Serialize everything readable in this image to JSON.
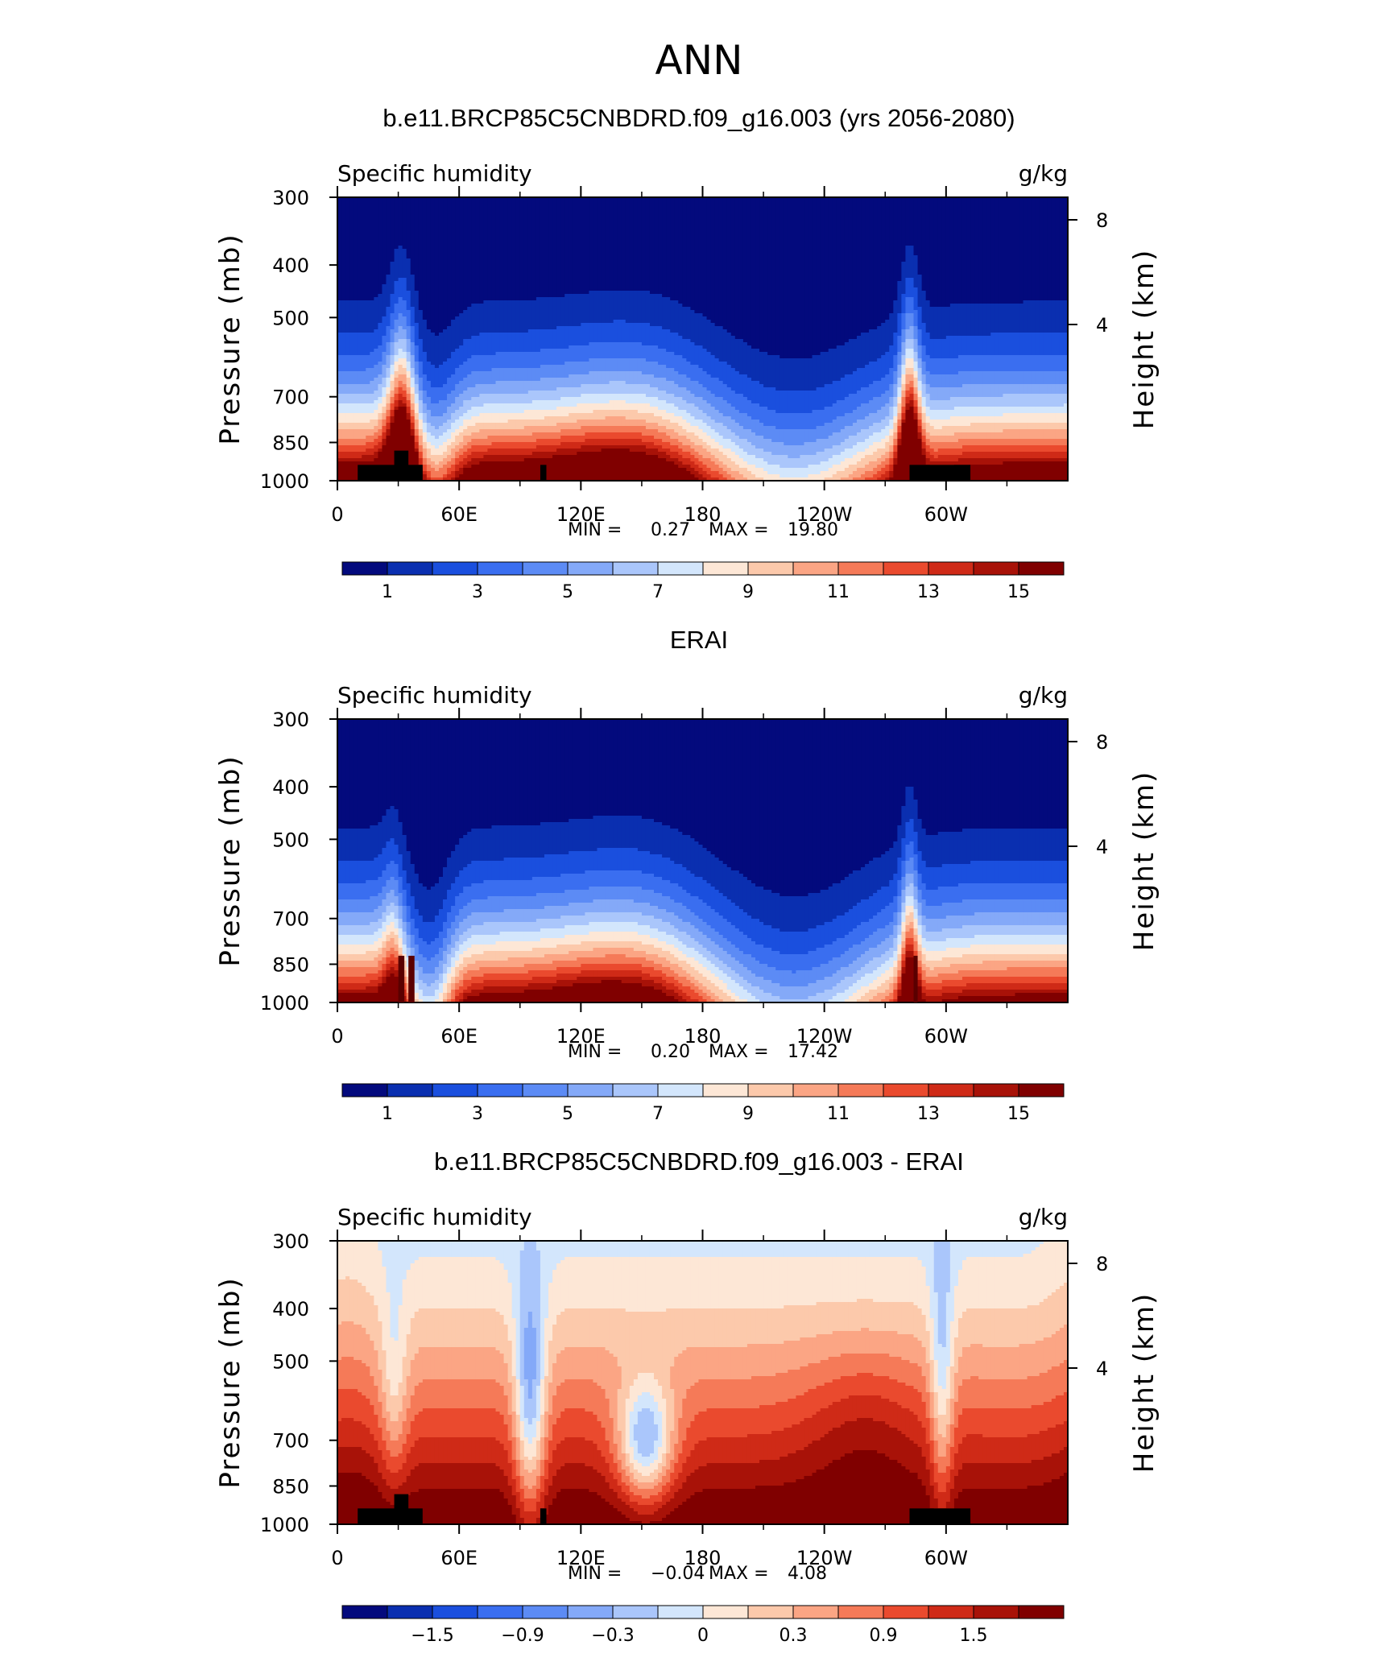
{
  "figure": {
    "title": "ANN",
    "colors": {
      "mask": "#000000",
      "frame": "#000000",
      "qty_palette": [
        "#030a7d",
        "#0a2fb0",
        "#1a4fde",
        "#3a6ef0",
        "#5c8bf5",
        "#84a9f8",
        "#aac6fb",
        "#d3e6fc",
        "#fde7d6",
        "#fcc9ab",
        "#fba584",
        "#f57a58",
        "#ea4a2e",
        "#cf2a17",
        "#a81208",
        "#800000"
      ],
      "diff_palette": [
        "#030a7d",
        "#0a2fb0",
        "#1a4fde",
        "#3a6ef0",
        "#5c8bf5",
        "#84a9f8",
        "#aac6fb",
        "#d3e6fc",
        "#fde7d6",
        "#fcc9ab",
        "#fba584",
        "#f57a58",
        "#ea4a2e",
        "#cf2a17",
        "#a81208",
        "#800000"
      ]
    }
  },
  "chart_data": [
    {
      "type": "heatmap",
      "title": "b.e11.BRCP85C5CNBDRD.f09_g16.003 (yrs 2056-2080)",
      "left_label": "Specific humidity",
      "right_label": "g/kg",
      "ylabel": "Pressure (mb)",
      "ylabel_right": "Height (km)",
      "y_ticks": [
        "300",
        "400",
        "500",
        "700",
        "850",
        "1000"
      ],
      "y_tick_values": [
        300,
        400,
        500,
        700,
        850,
        1000
      ],
      "y_right_ticks": [
        "8",
        "4"
      ],
      "x_ticks": [
        "0",
        "60E",
        "120E",
        "180",
        "120W",
        "60W"
      ],
      "x_tick_values": [
        0,
        60,
        120,
        180,
        240,
        300
      ],
      "xlim": [
        0,
        360
      ],
      "ylim": [
        1000,
        300
      ],
      "y_scale": "log",
      "min_label": "MIN =",
      "min_value": "0.27",
      "max_label": "MAX =",
      "max_value": "19.80",
      "colorbar_labels": [
        "1",
        "3",
        "5",
        "7",
        "9",
        "11",
        "13",
        "15"
      ]
    },
    {
      "type": "heatmap",
      "title": "ERAI",
      "left_label": "Specific humidity",
      "right_label": "g/kg",
      "ylabel": "Pressure (mb)",
      "ylabel_right": "Height (km)",
      "y_ticks": [
        "300",
        "400",
        "500",
        "700",
        "850",
        "1000"
      ],
      "y_tick_values": [
        300,
        400,
        500,
        700,
        850,
        1000
      ],
      "y_right_ticks": [
        "8",
        "4"
      ],
      "x_ticks": [
        "0",
        "60E",
        "120E",
        "180",
        "120W",
        "60W"
      ],
      "x_tick_values": [
        0,
        60,
        120,
        180,
        240,
        300
      ],
      "xlim": [
        0,
        360
      ],
      "ylim": [
        1000,
        300
      ],
      "y_scale": "log",
      "min_label": "MIN =",
      "min_value": "0.20",
      "max_label": "MAX =",
      "max_value": "17.42",
      "colorbar_labels": [
        "1",
        "3",
        "5",
        "7",
        "9",
        "11",
        "13",
        "15"
      ]
    },
    {
      "type": "heatmap",
      "title": "b.e11.BRCP85C5CNBDRD.f09_g16.003 - ERAI",
      "left_label": "Specific humidity",
      "right_label": "g/kg",
      "ylabel": "Pressure (mb)",
      "ylabel_right": "Height (km)",
      "y_ticks": [
        "300",
        "400",
        "500",
        "700",
        "850",
        "1000"
      ],
      "y_tick_values": [
        300,
        400,
        500,
        700,
        850,
        1000
      ],
      "y_right_ticks": [
        "8",
        "4"
      ],
      "x_ticks": [
        "0",
        "60E",
        "120E",
        "180",
        "120W",
        "60W"
      ],
      "x_tick_values": [
        0,
        60,
        120,
        180,
        240,
        300
      ],
      "xlim": [
        0,
        360
      ],
      "ylim": [
        1000,
        300
      ],
      "y_scale": "log",
      "min_label": "MIN =",
      "min_value": "−0.04",
      "max_label": "MAX =",
      "max_value": "4.08",
      "colorbar_labels": [
        "−1.5",
        "−0.9",
        "−0.3",
        "0",
        "0.3",
        "0.9",
        "1.5"
      ]
    }
  ]
}
